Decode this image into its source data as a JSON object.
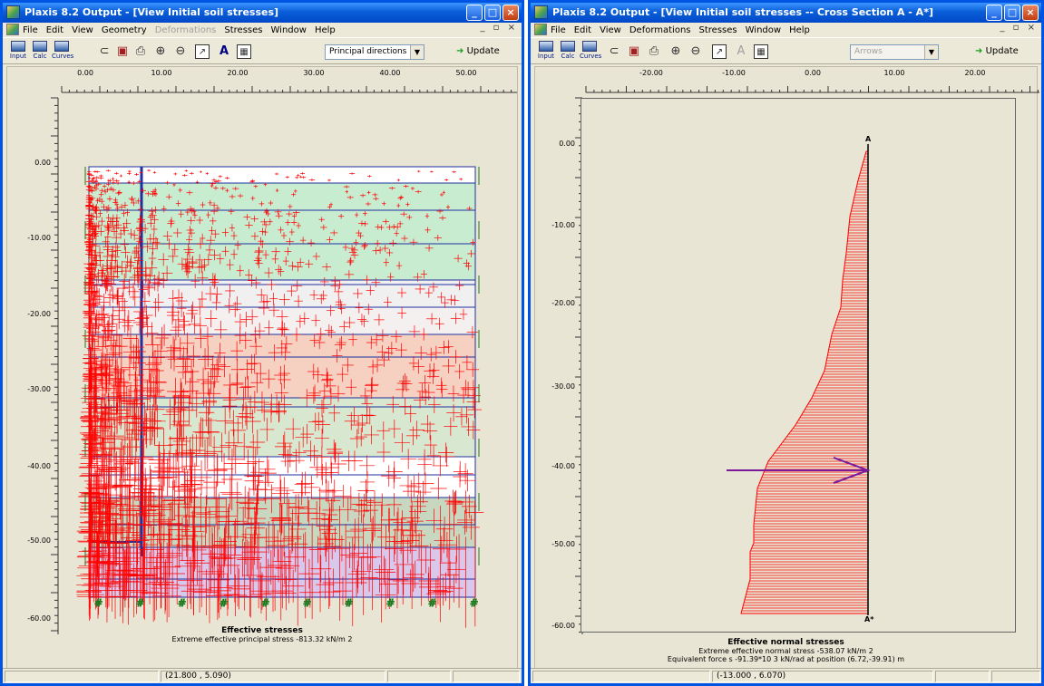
{
  "left_window": {
    "title": "Plaxis 8.2 Output - [View Initial soil stresses]",
    "menu": [
      "File",
      "Edit",
      "View",
      "Geometry",
      "Deformations",
      "Stresses",
      "Window",
      "Help"
    ],
    "toolbar": {
      "input_label": "Input",
      "calc_label": "Calc",
      "curves_label": "Curves",
      "dropdown_value": "Principal directions",
      "update_label": "Update"
    },
    "x_ticks": [
      "0.00",
      "10.00",
      "20.00",
      "30.00",
      "40.00",
      "50.00"
    ],
    "y_ticks": [
      "0.00",
      "-10.00",
      "-20.00",
      "-30.00",
      "-40.00",
      "-50.00",
      "-60.00"
    ],
    "caption_title": "Effective stresses",
    "caption_line1": "Extreme effective principal stress -813.32 kN/m 2",
    "status_coords": "(21.800 , 5.090)"
  },
  "right_window": {
    "title": "Plaxis 8.2 Output - [View Initial soil stresses  --  Cross Section A - A*]",
    "menu": [
      "File",
      "Edit",
      "View",
      "Deformations",
      "Stresses",
      "Window",
      "Help"
    ],
    "toolbar": {
      "input_label": "Input",
      "calc_label": "Calc",
      "curves_label": "Curves",
      "dropdown_value": "Arrows",
      "update_label": "Update"
    },
    "x_ticks": [
      "-20.00",
      "-10.00",
      "0.00",
      "10.00",
      "20.00"
    ],
    "y_ticks": [
      "0.00",
      "-10.00",
      "-20.00",
      "-30.00",
      "-40.00",
      "-50.00",
      "-60.00"
    ],
    "section_start_label": "A",
    "section_end_label": "A*",
    "caption_title": "Effective normal stresses",
    "caption_line1": "Extreme effective normal stress -538.07 kN/m 2",
    "caption_line2": "Equivalent force  s -91.39*10 3 kN/rad at position (6.72,-39.91) m",
    "status_coords": "(-13.000 , 6.070)"
  },
  "colors": {
    "title_blue": "#0a5fd8",
    "stress_red": "#ff0000",
    "layer_green": "#c8ecd0",
    "layer_pink": "#f6d0c0",
    "layer_purple": "#d8c8ec",
    "resultant_arrow": "#7a1a9a",
    "update_arrow": "#1e9e1e"
  }
}
